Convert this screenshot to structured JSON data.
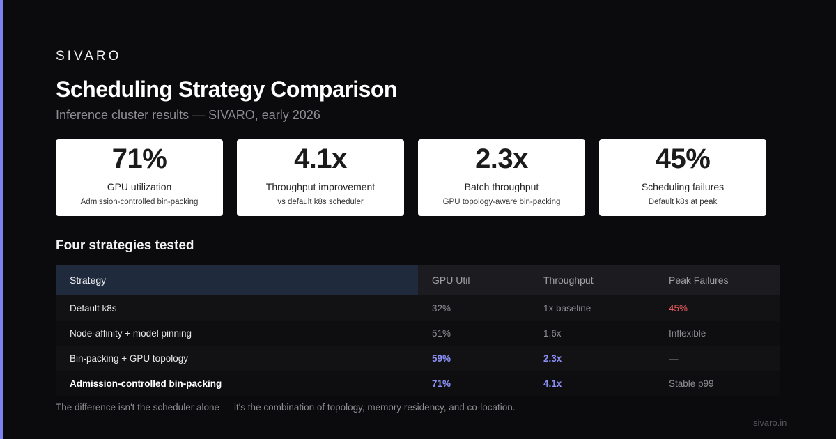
{
  "brand": "SIVARO",
  "title": "Scheduling Strategy Comparison",
  "subtitle": "Inference cluster results — SIVARO, early 2026",
  "accent_color": "#7c83f0",
  "stats": [
    {
      "value": "71%",
      "label": "GPU utilization",
      "sub": "Admission-controlled bin-packing"
    },
    {
      "value": "4.1x",
      "label": "Throughput improvement",
      "sub": "vs default k8s scheduler"
    },
    {
      "value": "2.3x",
      "label": "Batch throughput",
      "sub": "GPU topology-aware bin-packing"
    },
    {
      "value": "45%",
      "label": "Scheduling failures",
      "sub": "Default k8s at peak"
    }
  ],
  "section_title": "Four strategies tested",
  "table": {
    "headers": [
      "Strategy",
      "GPU Util",
      "Throughput",
      "Peak Failures"
    ],
    "rows": [
      {
        "strategy": "Default k8s",
        "gpu_util": "32%",
        "throughput": "1x baseline",
        "peak_failures": "45%"
      },
      {
        "strategy": "Node-affinity + model pinning",
        "gpu_util": "51%",
        "throughput": "1.6x",
        "peak_failures": "Inflexible"
      },
      {
        "strategy": "Bin-packing + GPU topology",
        "gpu_util": "59%",
        "throughput": "2.3x",
        "peak_failures": "—"
      },
      {
        "strategy": "Admission-controlled bin-packing",
        "gpu_util": "71%",
        "throughput": "4.1x",
        "peak_failures": "Stable p99"
      }
    ]
  },
  "footnote": "The difference isn't the scheduler alone — it's the combination of topology, memory residency, and co-location.",
  "site": "sivaro.in"
}
